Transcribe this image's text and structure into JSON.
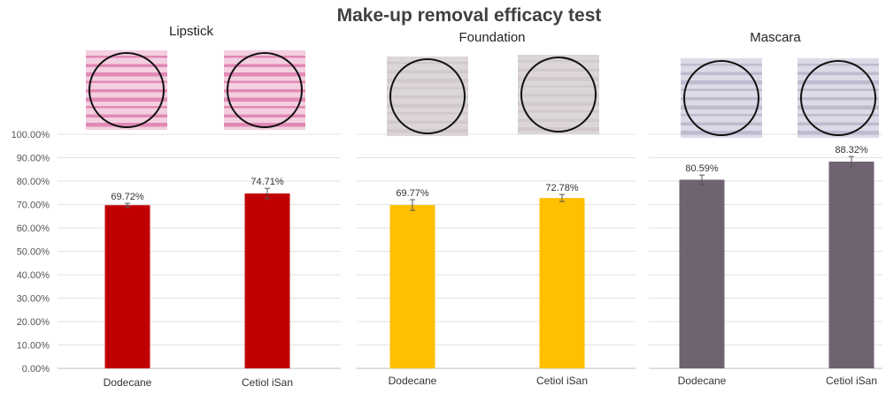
{
  "chart_data": {
    "type": "bar",
    "title": "Make-up removal efficacy test",
    "ylim": [
      0,
      100
    ],
    "yticks": [
      "0.00%",
      "10.00%",
      "20.00%",
      "30.00%",
      "40.00%",
      "50.00%",
      "60.00%",
      "70.00%",
      "80.00%",
      "90.00%",
      "100.00%"
    ],
    "categories": [
      "Dodecane",
      "Cetiol iSan"
    ],
    "panels": [
      {
        "name": "Lipstick",
        "color": "#c00000",
        "values": [
          69.72,
          74.71
        ],
        "labels": [
          "69.72%",
          "74.71%"
        ],
        "errors": [
          0.8,
          2.2
        ],
        "swatch": {
          "base": "#f3cfe0",
          "stripe": "#d4508f"
        }
      },
      {
        "name": "Foundation",
        "color": "#ffc000",
        "values": [
          69.77,
          72.78
        ],
        "labels": [
          "69.77%",
          "72.78%"
        ],
        "errors": [
          2.3,
          1.5
        ],
        "swatch": {
          "base": "#dcd6d8",
          "stripe": "#c9c0c4"
        }
      },
      {
        "name": "Mascara",
        "color": "#6f6271",
        "values": [
          80.59,
          88.32
        ],
        "labels": [
          "80.59%",
          "88.32%"
        ],
        "errors": [
          2.0,
          2.2
        ],
        "swatch": {
          "base": "#dcdae6",
          "stripe": "#a8a3bc"
        }
      }
    ]
  }
}
